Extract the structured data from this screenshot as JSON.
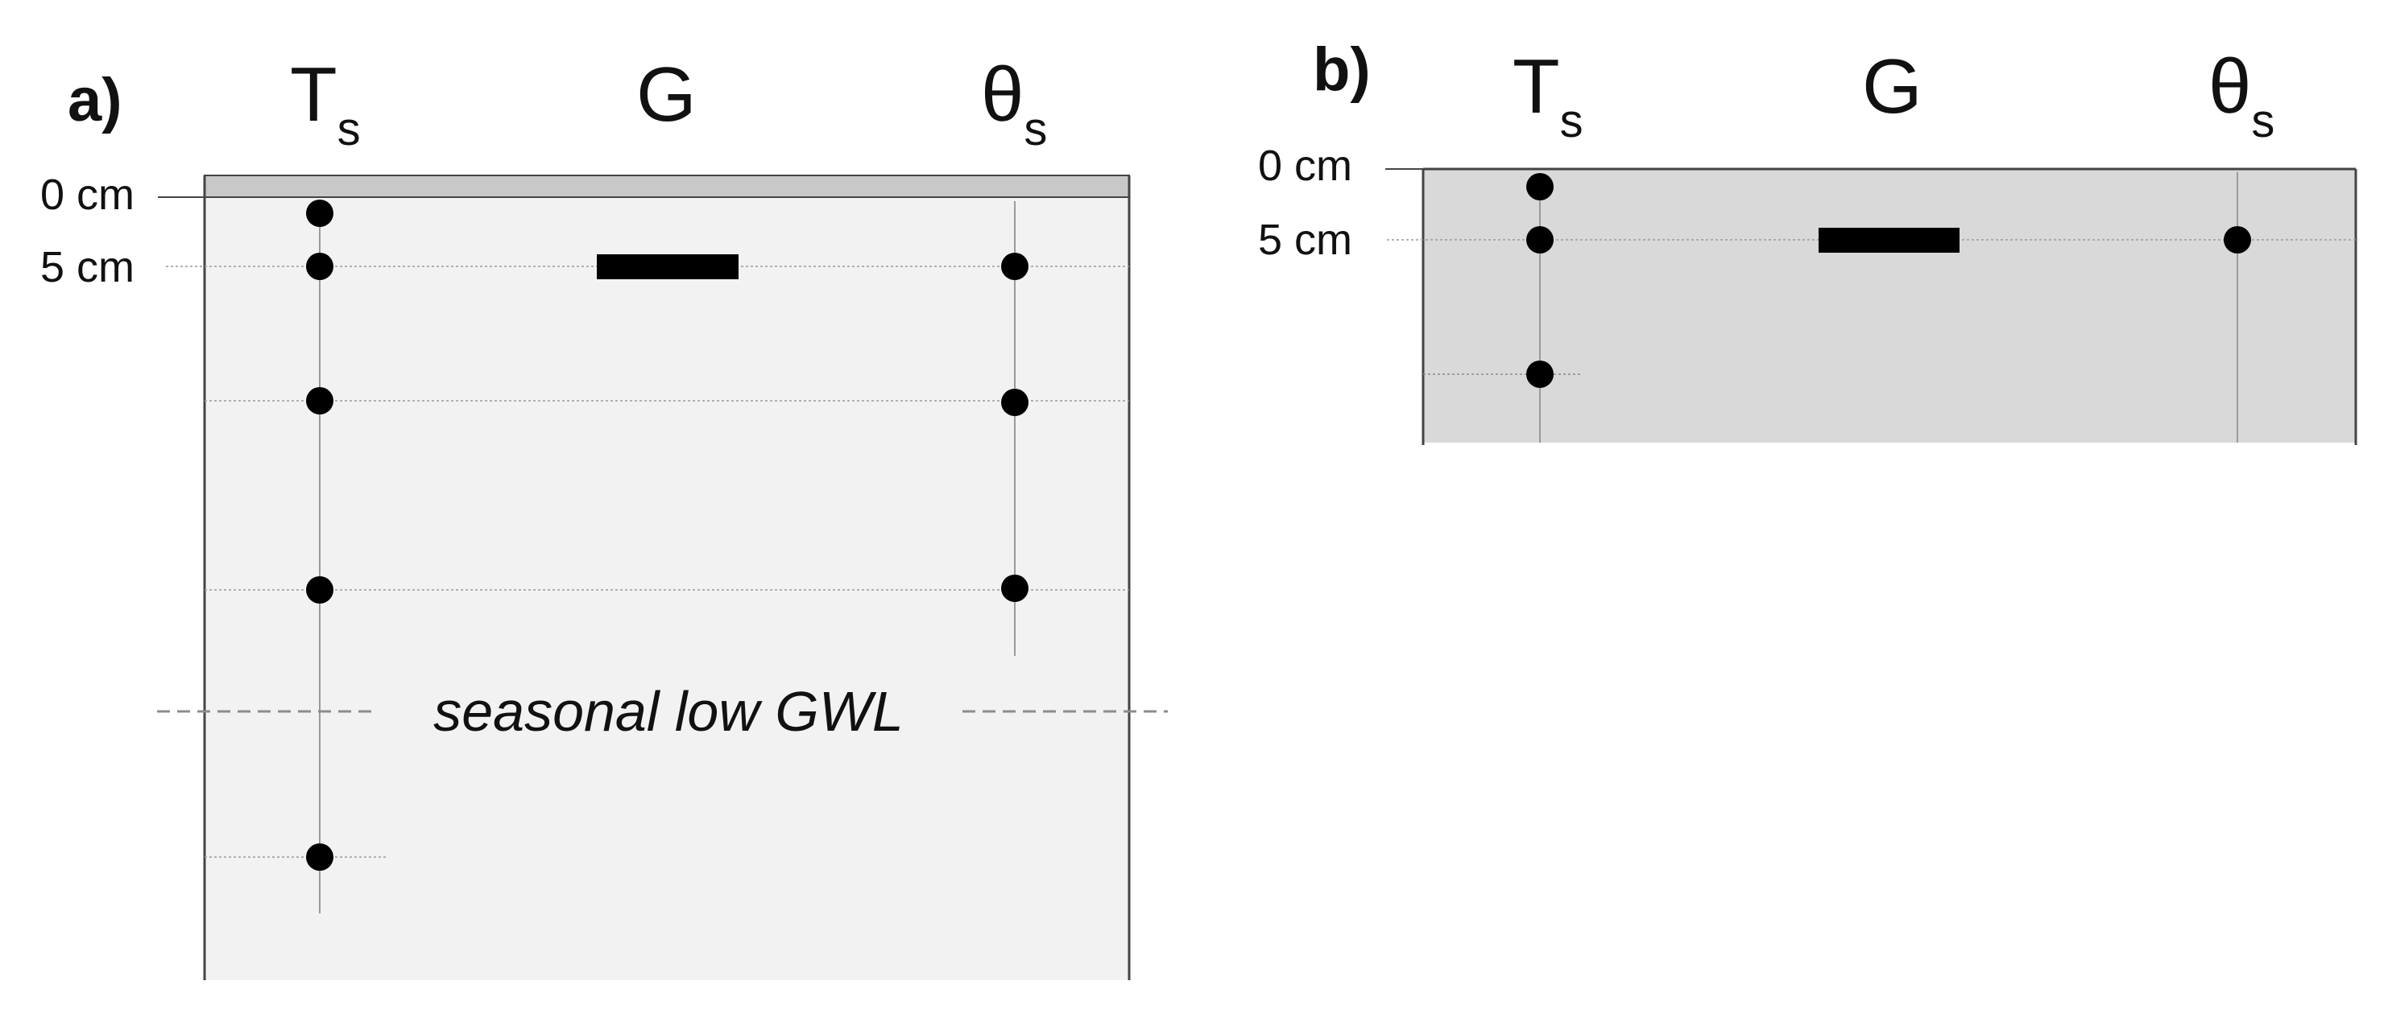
{
  "colors": {
    "panel_a_fill": "#f2f2f2",
    "panel_b_fill": "#d9d9d9",
    "surface_strip": "#c8c8c8",
    "border": "#444444",
    "sensor": "#000000",
    "grid_line": "#9a9a9a",
    "gwl_line": "#8c8c8c"
  },
  "panels": {
    "a": {
      "label": "a)",
      "columns": {
        "ts_main": "T",
        "ts_sub": "s",
        "g": "G",
        "theta_main": "θ",
        "theta_sub": "s"
      },
      "depth_labels": {
        "surface": "0 cm",
        "five": "5 cm"
      },
      "annotation": "seasonal low GWL"
    },
    "b": {
      "label": "b)",
      "columns": {
        "ts_main": "T",
        "ts_sub": "s",
        "g": "G",
        "theta_main": "θ",
        "theta_sub": "s"
      },
      "depth_labels": {
        "surface": "0 cm",
        "five": "5 cm"
      }
    }
  }
}
